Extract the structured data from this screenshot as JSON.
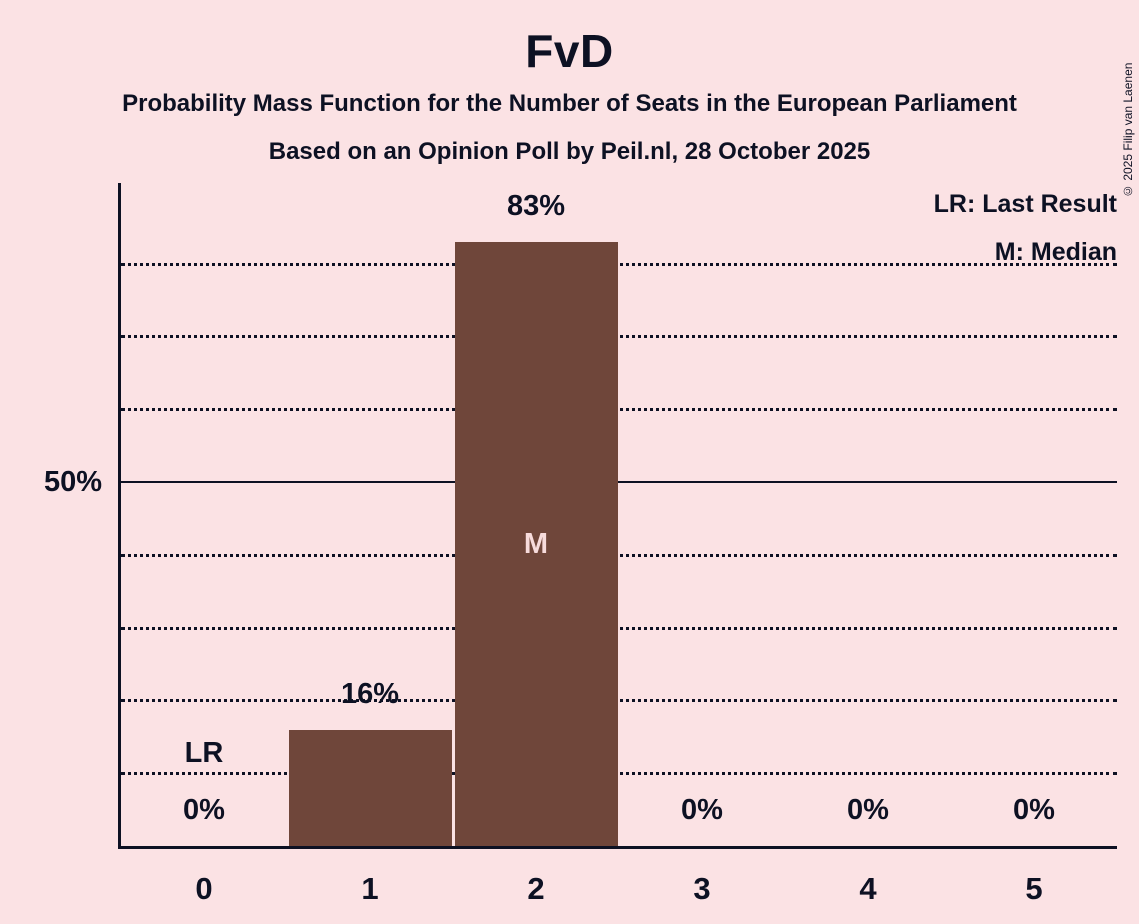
{
  "header": {
    "title": "FvD",
    "subtitle": "Probability Mass Function for the Number of Seats in the European Parliament",
    "source_line": "Based on an Opinion Poll by Peil.nl, 28 October 2025"
  },
  "legend": {
    "items": [
      "LR: Last Result",
      "M: Median"
    ]
  },
  "footer": {
    "copyright": "© 2025 Filip van Laenen"
  },
  "colors": {
    "background": "#FBE2E4",
    "bar": "#6F463A",
    "text": "#0D1123",
    "bar_annotation": "#F7DBDB"
  },
  "chart_data": {
    "type": "bar",
    "title": "FvD",
    "categories": [
      "0",
      "1",
      "2",
      "3",
      "4",
      "5"
    ],
    "values": [
      0,
      16,
      83,
      0,
      0,
      0
    ],
    "value_labels": [
      "0%",
      "16%",
      "83%",
      "0%",
      "0%",
      "0%"
    ],
    "annotations": [
      {
        "category_index": 0,
        "label": "LR"
      },
      {
        "category_index": 2,
        "label": "M"
      }
    ],
    "y_axis": {
      "tick_label": "50%",
      "solid_gridline_at": 50,
      "dotted_gridlines_at": [
        10,
        20,
        30,
        40,
        60,
        70,
        80
      ],
      "ylim": [
        0,
        91
      ]
    },
    "x_axis": {
      "tick_labels": [
        "0",
        "1",
        "2",
        "3",
        "4",
        "5"
      ]
    },
    "legend_position": "top-right",
    "grid": "dotted-horizontal"
  }
}
